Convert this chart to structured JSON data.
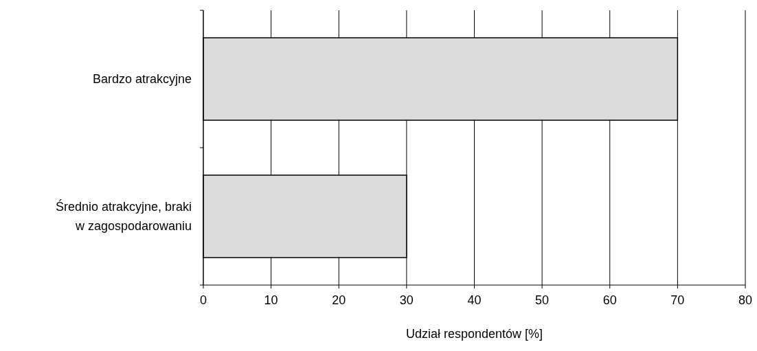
{
  "chart_data": {
    "type": "bar",
    "orientation": "horizontal",
    "categories": [
      "Bardzo atrakcyjne",
      "Średnio atrakcyjne, braki w zagospodarowaniu"
    ],
    "values": [
      70,
      30
    ],
    "color": "#dcdcdc",
    "xlim": [
      0,
      80
    ],
    "xticks": [
      0,
      10,
      20,
      30,
      40,
      50,
      60,
      70,
      80
    ],
    "xlabel": "Udział respondentów [%]",
    "grid": "x"
  }
}
